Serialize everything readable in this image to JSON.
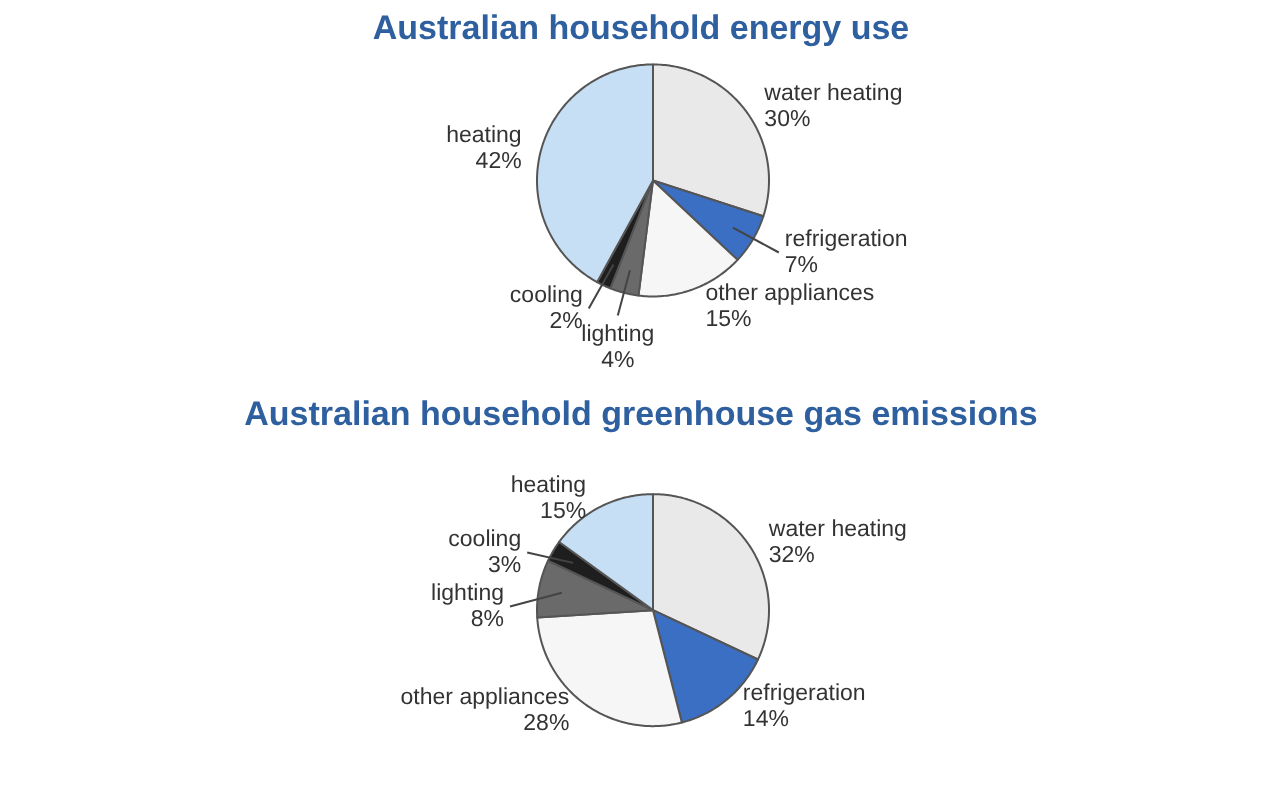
{
  "chart_data": [
    {
      "type": "pie",
      "title": "Australian household energy use",
      "categories": [
        "water heating",
        "refrigeration",
        "other appliances",
        "lighting",
        "cooling",
        "heating"
      ],
      "values": [
        30,
        7,
        15,
        4,
        2,
        42
      ],
      "value_labels": [
        "30%",
        "7%",
        "15%",
        "4%",
        "2%",
        "42%"
      ],
      "colors": [
        "#e9e9e9",
        "#3b6fc4",
        "#f6f6f6",
        "#6a6a6a",
        "#1e1e1e",
        "#c6dff5"
      ]
    },
    {
      "type": "pie",
      "title": "Australian household greenhouse gas emissions",
      "categories": [
        "water heating",
        "refrigeration",
        "other appliances",
        "lighting",
        "cooling",
        "heating"
      ],
      "values": [
        32,
        14,
        28,
        8,
        3,
        15
      ],
      "value_labels": [
        "32%",
        "14%",
        "28%",
        "8%",
        "3%",
        "15%"
      ],
      "colors": [
        "#e9e9e9",
        "#3b6fc4",
        "#f6f6f6",
        "#6a6a6a",
        "#1e1e1e",
        "#c6dff5"
      ]
    }
  ]
}
